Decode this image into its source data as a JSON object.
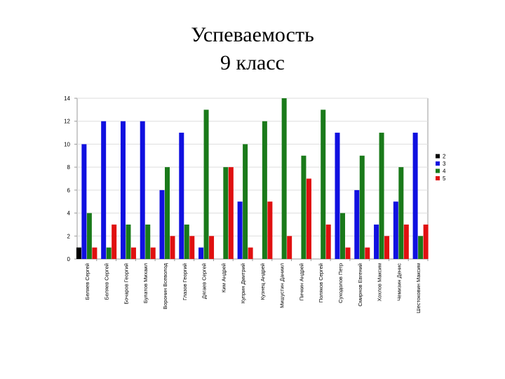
{
  "slide": {
    "title_line1": "Успеваемость",
    "title_line2": "9 класс"
  },
  "chart_data": {
    "type": "bar",
    "title": "",
    "xlabel": "",
    "ylabel": "",
    "ylim": [
      0,
      14
    ],
    "yticks": [
      0,
      2,
      4,
      6,
      8,
      10,
      12,
      14
    ],
    "grid": true,
    "legend_position": "right",
    "categories": [
      "Беляев Сергей",
      "Беляев Сергей",
      "Бочаров Георгий",
      "Булатов Михаил",
      "Воронин Всеволод",
      "Глазов Георгий",
      "Дягаев Сергей",
      "Ким Андрей",
      "Куприн Дмитрий",
      "Кузнец Андрей",
      "Мишустин Даниил",
      "Пичкин Андрей",
      "Поляков Сергей",
      "Суходолов Петр",
      "Смирнов Евгений",
      "Хохлов Максим",
      "Чемизин Денис",
      "Шестоковин Максим"
    ],
    "series": [
      {
        "name": "2",
        "color": "#000000",
        "values": [
          1,
          0,
          0,
          0,
          0,
          0,
          0,
          0,
          0,
          0,
          0,
          0,
          0,
          0,
          0,
          0,
          0,
          0
        ]
      },
      {
        "name": "3",
        "color": "#1010e0",
        "values": [
          10,
          12,
          12,
          12,
          6,
          11,
          1,
          0,
          5,
          0,
          0,
          0,
          0,
          11,
          6,
          3,
          5,
          11
        ]
      },
      {
        "name": "4",
        "color": "#1a7a1a",
        "values": [
          4,
          1,
          3,
          3,
          8,
          3,
          13,
          8,
          10,
          12,
          14,
          9,
          13,
          4,
          9,
          11,
          8,
          2
        ]
      },
      {
        "name": "5",
        "color": "#e01010",
        "values": [
          1,
          3,
          1,
          1,
          2,
          2,
          2,
          8,
          1,
          5,
          2,
          7,
          3,
          1,
          1,
          2,
          3,
          3
        ]
      }
    ]
  }
}
